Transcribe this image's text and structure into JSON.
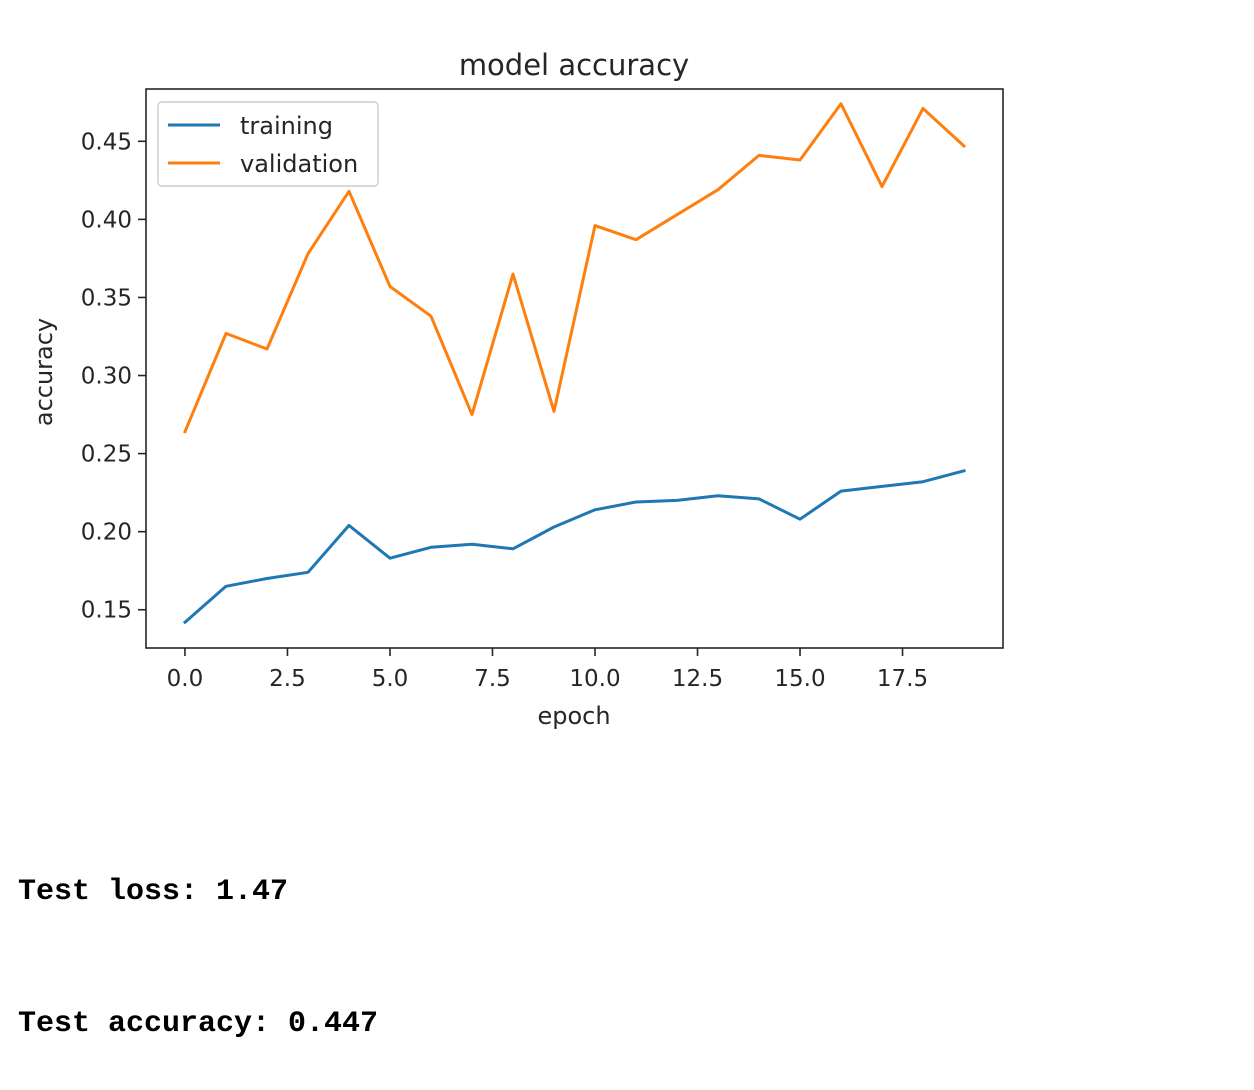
{
  "chart_data": {
    "type": "line",
    "title": "model accuracy",
    "xlabel": "epoch",
    "ylabel": "accuracy",
    "xlim": [
      -0.95,
      19.95
    ],
    "ylim": [
      0.1255,
      0.4835
    ],
    "xticks": [
      0,
      2.5,
      5,
      7.5,
      10,
      12.5,
      15,
      17.5
    ],
    "xtick_labels": [
      "0.0",
      "2.5",
      "5.0",
      "7.5",
      "10.0",
      "12.5",
      "15.0",
      "17.5"
    ],
    "yticks": [
      0.15,
      0.2,
      0.25,
      0.3,
      0.35,
      0.4,
      0.45
    ],
    "ytick_labels": [
      "0.15",
      "0.20",
      "0.25",
      "0.30",
      "0.35",
      "0.40",
      "0.45"
    ],
    "grid": false,
    "legend_position": "top-left",
    "x": [
      0,
      1,
      2,
      3,
      4,
      5,
      6,
      7,
      8,
      9,
      10,
      11,
      12,
      13,
      14,
      15,
      16,
      17,
      18,
      19
    ],
    "series": [
      {
        "name": "training",
        "color": "#1f77b4",
        "values": [
          0.142,
          0.165,
          0.17,
          0.174,
          0.204,
          0.183,
          0.19,
          0.192,
          0.189,
          0.203,
          0.214,
          0.219,
          0.22,
          0.223,
          0.221,
          0.208,
          0.226,
          0.229,
          0.232,
          0.239
        ]
      },
      {
        "name": "validation",
        "color": "#ff7f0e",
        "values": [
          0.264,
          0.327,
          0.317,
          0.378,
          0.418,
          0.357,
          0.338,
          0.275,
          0.365,
          0.277,
          0.396,
          0.387,
          0.403,
          0.419,
          0.441,
          0.438,
          0.474,
          0.421,
          0.471,
          0.447
        ]
      }
    ]
  },
  "output": {
    "test_loss": "Test loss: 1.47",
    "test_accuracy": "Test accuracy: 0.447"
  }
}
